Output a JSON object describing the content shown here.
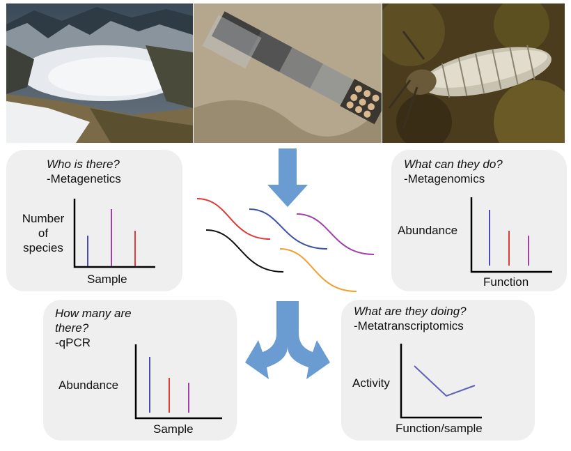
{
  "photos": [
    {
      "name": "snowy-mountain-lake-photo"
    },
    {
      "name": "submerged-sample-bags-photo"
    },
    {
      "name": "aquatic-insect-larva-photo"
    }
  ],
  "panels": {
    "who": {
      "question": "Who is there?",
      "method": "-Metagenetics",
      "ylabel": [
        "Number",
        "of",
        "species"
      ],
      "xlabel": "Sample",
      "bar_colors": [
        "#4a4ab8",
        "#a040a8",
        "#e03a3a"
      ]
    },
    "what_can": {
      "question": "What can they do?",
      "method": "-Metagenomics",
      "ylabel": "Abundance",
      "xlabel": "Function",
      "bar_colors": [
        "#4a4ab8",
        "#e03a3a",
        "#a040a8"
      ]
    },
    "how_many": {
      "question_line1": "How many are",
      "question_line2": "there?",
      "method": "-qPCR",
      "ylabel": "Abundance",
      "xlabel": "Sample",
      "bar_colors": [
        "#4a4ab8",
        "#e03a3a",
        "#a040a8"
      ]
    },
    "what_doing": {
      "question": "What are they doing?",
      "method": "-Metatranscriptomics",
      "ylabel": "Activity",
      "xlabel": "Function/sample",
      "line_color": "#6060b8"
    }
  },
  "colors": {
    "arrow": "#6a9cd2",
    "panel_bg": "#efefef",
    "sequence_strands": [
      "#e03a3a",
      "#3a52a8",
      "#a040a8",
      "#111111",
      "#f0a030"
    ]
  }
}
